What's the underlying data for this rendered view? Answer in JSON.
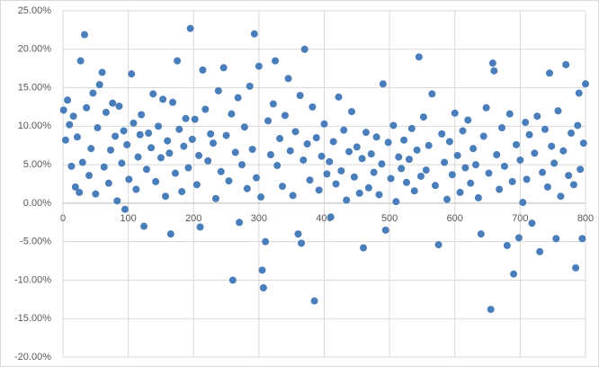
{
  "chart_data": {
    "type": "scatter",
    "color": "#4a7ebb",
    "xlim": [
      0,
      800
    ],
    "xticks": [
      0,
      100,
      200,
      300,
      400,
      500,
      600,
      700,
      800
    ],
    "ylim": [
      -20,
      25
    ],
    "yticks": [
      {
        "value": -20,
        "label": "-20.00%"
      },
      {
        "value": -15,
        "label": "-15.00%"
      },
      {
        "value": -10,
        "label": "-10.00%"
      },
      {
        "value": -5,
        "label": "-5.00%"
      },
      {
        "value": 0,
        "label": "0.00%"
      },
      {
        "value": 5,
        "label": "5.00%"
      },
      {
        "value": 10,
        "label": "10.00%"
      },
      {
        "value": 15,
        "label": "15.00%"
      },
      {
        "value": 20,
        "label": "20.00%"
      },
      {
        "value": 25,
        "label": "25.00%"
      }
    ],
    "grid": true,
    "x": [
      1,
      4,
      7,
      10,
      13,
      16,
      19,
      22,
      25,
      27,
      30,
      33,
      36,
      40,
      43,
      46,
      50,
      53,
      56,
      60,
      63,
      66,
      70,
      73,
      76,
      80,
      83,
      86,
      90,
      93,
      95,
      98,
      101,
      105,
      108,
      112,
      115,
      118,
      120,
      124,
      128,
      131,
      135,
      138,
      142,
      146,
      150,
      153,
      157,
      160,
      163,
      165,
      168,
      172,
      175,
      178,
      182,
      185,
      188,
      192,
      195,
      198,
      202,
      205,
      208,
      210,
      214,
      218,
      222,
      226,
      230,
      234,
      238,
      242,
      246,
      250,
      254,
      258,
      260,
      264,
      268,
      270,
      274,
      278,
      282,
      286,
      290,
      293,
      296,
      300,
      303,
      305,
      307,
      310,
      314,
      318,
      322,
      325,
      328,
      332,
      336,
      340,
      345,
      348,
      352,
      356,
      360,
      363,
      365,
      368,
      370,
      374,
      378,
      382,
      385,
      388,
      392,
      396,
      400,
      404,
      408,
      410,
      414,
      418,
      422,
      426,
      430,
      434,
      438,
      442,
      446,
      450,
      454,
      458,
      460,
      464,
      468,
      472,
      476,
      480,
      484,
      488,
      490,
      494,
      498,
      502,
      506,
      510,
      514,
      518,
      522,
      526,
      530,
      534,
      538,
      542,
      545,
      548,
      552,
      556,
      560,
      565,
      570,
      575,
      580,
      584,
      588,
      592,
      596,
      600,
      604,
      608,
      612,
      616,
      620,
      624,
      628,
      632,
      636,
      640,
      644,
      648,
      652,
      655,
      658,
      660,
      664,
      668,
      672,
      676,
      680,
      684,
      688,
      690,
      694,
      698,
      700,
      704,
      708,
      710,
      714,
      718,
      722,
      726,
      730,
      734,
      738,
      742,
      745,
      748,
      752,
      755,
      758,
      762,
      766,
      770,
      774,
      778,
      782,
      785,
      788,
      790,
      792,
      795,
      797,
      800
    ],
    "values": [
      12.1,
      8.2,
      13.4,
      10.2,
      4.8,
      11.3,
      2.1,
      8.6,
      1.4,
      18.5,
      5.3,
      21.9,
      12.4,
      3.6,
      7.1,
      14.3,
      1.2,
      9.8,
      15.4,
      17.0,
      4.7,
      11.8,
      2.6,
      6.9,
      13.0,
      8.7,
      0.3,
      12.6,
      5.2,
      9.4,
      -0.8,
      7.6,
      3.1,
      16.8,
      10.4,
      1.8,
      6.0,
      8.9,
      11.5,
      -3.0,
      4.4,
      9.1,
      7.2,
      14.2,
      2.8,
      10.0,
      5.9,
      13.5,
      0.9,
      8.1,
      6.5,
      -4.0,
      13.1,
      3.9,
      18.5,
      9.6,
      1.5,
      7.4,
      11.0,
      4.6,
      22.7,
      8.3,
      10.9,
      2.4,
      6.2,
      -3.1,
      17.3,
      12.2,
      5.5,
      9.0,
      7.8,
      0.6,
      14.6,
      4.1,
      17.6,
      8.8,
      2.9,
      11.6,
      -10.0,
      6.6,
      13.7,
      -2.5,
      5.0,
      9.9,
      1.9,
      15.2,
      7.0,
      22.0,
      3.3,
      17.8,
      0.8,
      -8.7,
      -11.0,
      -5.0,
      10.7,
      6.3,
      12.9,
      18.5,
      4.9,
      8.4,
      2.2,
      11.4,
      16.2,
      6.8,
      1.0,
      9.3,
      -4.0,
      14.0,
      -5.2,
      5.6,
      20.0,
      7.7,
      3.0,
      12.5,
      -12.7,
      8.5,
      1.7,
      6.1,
      10.3,
      3.8,
      5.4,
      -1.8,
      8.0,
      2.5,
      13.8,
      4.2,
      9.5,
      0.4,
      6.7,
      11.9,
      3.4,
      7.3,
      1.3,
      5.8,
      -5.8,
      9.2,
      2.0,
      6.4,
      4.0,
      8.6,
      1.1,
      5.1,
      15.5,
      -3.5,
      7.9,
      3.2,
      10.1,
      0.2,
      6.0,
      4.5,
      8.2,
      2.7,
      5.7,
      9.7,
      1.6,
      6.9,
      19.0,
      3.5,
      11.2,
      4.3,
      7.5,
      14.2,
      2.3,
      -5.4,
      9.0,
      5.3,
      0.5,
      8.0,
      3.7,
      11.7,
      6.2,
      1.4,
      9.4,
      4.6,
      10.8,
      2.6,
      7.1,
      5.0,
      0.7,
      -4.0,
      8.7,
      12.4,
      3.9,
      -13.8,
      18.2,
      17.2,
      6.3,
      1.8,
      9.8,
      4.8,
      -5.5,
      11.6,
      2.8,
      -9.2,
      7.6,
      -4.5,
      5.6,
      0.1,
      10.5,
      3.1,
      8.9,
      -2.6,
      6.5,
      11.3,
      -6.3,
      4.0,
      9.6,
      2.1,
      16.9,
      7.4,
      5.2,
      -4.6,
      12.0,
      0.9,
      6.8,
      18.0,
      3.6,
      9.1,
      2.4,
      -8.4,
      10.1,
      14.3,
      4.4,
      -4.6,
      7.8,
      15.5
    ]
  }
}
